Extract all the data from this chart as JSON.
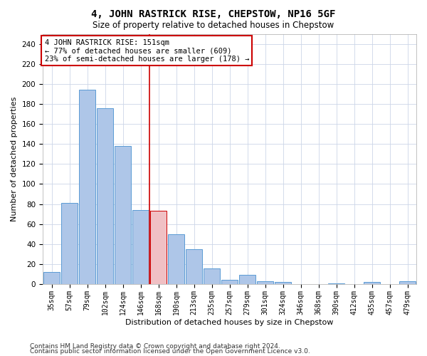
{
  "title": "4, JOHN RASTRICK RISE, CHEPSTOW, NP16 5GF",
  "subtitle": "Size of property relative to detached houses in Chepstow",
  "xlabel": "Distribution of detached houses by size in Chepstow",
  "ylabel": "Number of detached properties",
  "categories": [
    "35sqm",
    "57sqm",
    "79sqm",
    "102sqm",
    "124sqm",
    "146sqm",
    "168sqm",
    "190sqm",
    "213sqm",
    "235sqm",
    "257sqm",
    "279sqm",
    "301sqm",
    "324sqm",
    "346sqm",
    "368sqm",
    "390sqm",
    "412sqm",
    "435sqm",
    "457sqm",
    "479sqm"
  ],
  "values": [
    12,
    81,
    194,
    176,
    138,
    74,
    73,
    50,
    35,
    16,
    4,
    9,
    3,
    2,
    0,
    0,
    1,
    0,
    2,
    0,
    3
  ],
  "bar_color": "#aec6e8",
  "bar_edge_color": "#5b9bd5",
  "highlight_bar_index": 6,
  "highlight_bar_color": "#f0c0c4",
  "highlight_bar_edge_color": "#cc0000",
  "vline_x": 5.5,
  "vline_color": "#cc0000",
  "annotation_text": "4 JOHN RASTRICK RISE: 151sqm\n← 77% of detached houses are smaller (609)\n23% of semi-detached houses are larger (178) →",
  "annotation_box_color": "#ffffff",
  "annotation_box_edge": "#cc0000",
  "ylim": [
    0,
    250
  ],
  "yticks": [
    0,
    20,
    40,
    60,
    80,
    100,
    120,
    140,
    160,
    180,
    200,
    220,
    240
  ],
  "footer_line1": "Contains HM Land Registry data © Crown copyright and database right 2024.",
  "footer_line2": "Contains public sector information licensed under the Open Government Licence v3.0.",
  "bg_color": "#ffffff",
  "grid_color": "#ccd6e8"
}
